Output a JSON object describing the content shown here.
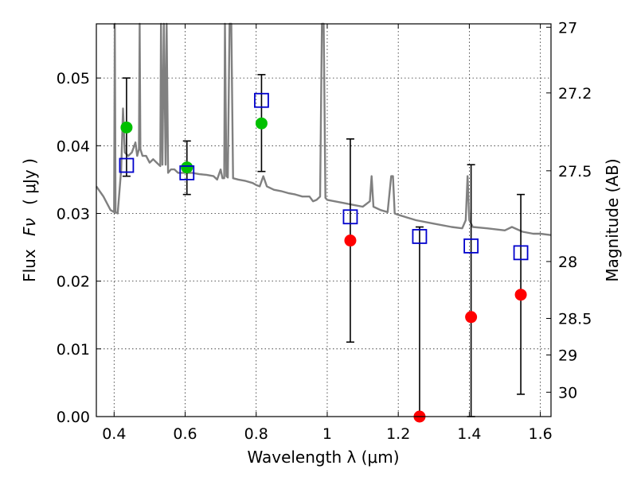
{
  "chart_data": {
    "type": "scatter",
    "xlabel": "Wavelength  λ (μm)",
    "ylabel_text": "Flux",
    "ylabel_symbol": "Fν",
    "ylabel_unit": "( μJy )",
    "ylabel_right": "Magnitude (AB)",
    "xlim": [
      0.35,
      1.63
    ],
    "ylim": [
      0.0,
      0.058
    ],
    "xticks": [
      0.4,
      0.6,
      0.8,
      1.0,
      1.2,
      1.4,
      1.6
    ],
    "xtick_labels": [
      "0.4",
      "0.6",
      "0.8",
      "1",
      "1.2",
      "1.4",
      "1.6"
    ],
    "yticks": [
      0.0,
      0.01,
      0.02,
      0.03,
      0.04,
      0.05
    ],
    "ytick_labels": [
      "0.00",
      "0.01",
      "0.02",
      "0.03",
      "0.04",
      "0.05"
    ],
    "right_ticks": [
      {
        "label": "27",
        "flux": 0.0575
      },
      {
        "label": "27.2",
        "flux": 0.0478
      },
      {
        "label": "27.5",
        "flux": 0.0363
      },
      {
        "label": "28",
        "flux": 0.0229
      },
      {
        "label": "28.5",
        "flux": 0.0145
      },
      {
        "label": "29",
        "flux": 0.0091
      },
      {
        "label": "30",
        "flux": 0.0036
      }
    ],
    "grid": true,
    "model_sed": {
      "name": "model spectrum",
      "color": "#808080",
      "points": [
        [
          0.35,
          0.034
        ],
        [
          0.37,
          0.0325
        ],
        [
          0.39,
          0.0305
        ],
        [
          0.4,
          0.0302
        ],
        [
          0.402,
          0.06
        ],
        [
          0.404,
          0.0302
        ],
        [
          0.41,
          0.03
        ],
        [
          0.42,
          0.0365
        ],
        [
          0.425,
          0.0455
        ],
        [
          0.43,
          0.039
        ],
        [
          0.44,
          0.0385
        ],
        [
          0.45,
          0.039
        ],
        [
          0.46,
          0.0405
        ],
        [
          0.465,
          0.0385
        ],
        [
          0.47,
          0.0395
        ],
        [
          0.472,
          0.06
        ],
        [
          0.474,
          0.0395
        ],
        [
          0.48,
          0.0385
        ],
        [
          0.49,
          0.0385
        ],
        [
          0.5,
          0.0375
        ],
        [
          0.51,
          0.038
        ],
        [
          0.52,
          0.0375
        ],
        [
          0.53,
          0.037
        ],
        [
          0.532,
          0.06
        ],
        [
          0.536,
          0.0372
        ],
        [
          0.54,
          0.06
        ],
        [
          0.545,
          0.0372
        ],
        [
          0.548,
          0.06
        ],
        [
          0.552,
          0.036
        ],
        [
          0.56,
          0.0365
        ],
        [
          0.57,
          0.0365
        ],
        [
          0.58,
          0.036
        ],
        [
          0.6,
          0.036
        ],
        [
          0.62,
          0.036
        ],
        [
          0.64,
          0.0358
        ],
        [
          0.66,
          0.0357
        ],
        [
          0.68,
          0.0355
        ],
        [
          0.69,
          0.035
        ],
        [
          0.7,
          0.0365
        ],
        [
          0.705,
          0.0352
        ],
        [
          0.71,
          0.0352
        ],
        [
          0.712,
          0.06
        ],
        [
          0.716,
          0.0355
        ],
        [
          0.72,
          0.0353
        ],
        [
          0.725,
          0.06
        ],
        [
          0.73,
          0.06
        ],
        [
          0.735,
          0.0352
        ],
        [
          0.75,
          0.035
        ],
        [
          0.77,
          0.0348
        ],
        [
          0.79,
          0.0345
        ],
        [
          0.8,
          0.0342
        ],
        [
          0.81,
          0.034
        ],
        [
          0.82,
          0.0355
        ],
        [
          0.83,
          0.034
        ],
        [
          0.85,
          0.0335
        ],
        [
          0.87,
          0.0333
        ],
        [
          0.89,
          0.033
        ],
        [
          0.91,
          0.0328
        ],
        [
          0.93,
          0.0325
        ],
        [
          0.95,
          0.0325
        ],
        [
          0.96,
          0.0318
        ],
        [
          0.97,
          0.032
        ],
        [
          0.98,
          0.0325
        ],
        [
          0.985,
          0.06
        ],
        [
          0.99,
          0.06
        ],
        [
          0.995,
          0.0323
        ],
        [
          1.0,
          0.032
        ],
        [
          1.05,
          0.0315
        ],
        [
          1.08,
          0.0312
        ],
        [
          1.1,
          0.031
        ],
        [
          1.12,
          0.0318
        ],
        [
          1.125,
          0.0355
        ],
        [
          1.13,
          0.031
        ],
        [
          1.15,
          0.0305
        ],
        [
          1.17,
          0.0302
        ],
        [
          1.18,
          0.0355
        ],
        [
          1.185,
          0.0355
        ],
        [
          1.19,
          0.03
        ],
        [
          1.2,
          0.0298
        ],
        [
          1.25,
          0.029
        ],
        [
          1.3,
          0.0285
        ],
        [
          1.35,
          0.028
        ],
        [
          1.38,
          0.0278
        ],
        [
          1.39,
          0.029
        ],
        [
          1.395,
          0.0355
        ],
        [
          1.4,
          0.029
        ],
        [
          1.41,
          0.028
        ],
        [
          1.45,
          0.0278
        ],
        [
          1.5,
          0.0275
        ],
        [
          1.52,
          0.028
        ],
        [
          1.55,
          0.0273
        ],
        [
          1.58,
          0.027
        ],
        [
          1.6,
          0.027
        ],
        [
          1.63,
          0.0268
        ]
      ]
    },
    "observed": [
      {
        "x": 0.435,
        "y": 0.0427,
        "yerr_low": 0.0355,
        "yerr_high": 0.05,
        "color": "#00c000"
      },
      {
        "x": 0.605,
        "y": 0.0368,
        "yerr_low": 0.0328,
        "yerr_high": 0.0407,
        "color": "#00c000"
      },
      {
        "x": 0.815,
        "y": 0.0433,
        "yerr_low": 0.0362,
        "yerr_high": 0.0505,
        "color": "#00c000"
      },
      {
        "x": 1.065,
        "y": 0.026,
        "yerr_low": 0.011,
        "yerr_high": 0.041,
        "color": "#ff0000"
      },
      {
        "x": 1.26,
        "y": 0.0,
        "yerr_low": 0.0,
        "yerr_high": 0.028,
        "color": "#ff0000"
      },
      {
        "x": 1.405,
        "y": 0.0147,
        "yerr_low": 0.0,
        "yerr_high": 0.0372,
        "color": "#ff0000"
      },
      {
        "x": 1.545,
        "y": 0.018,
        "yerr_low": 0.0033,
        "yerr_high": 0.0328,
        "color": "#ff0000"
      }
    ],
    "model_phot": {
      "color": "#0000cc",
      "points": [
        [
          0.435,
          0.0371
        ],
        [
          0.605,
          0.036
        ],
        [
          0.815,
          0.0467
        ],
        [
          1.065,
          0.0295
        ],
        [
          1.26,
          0.0266
        ],
        [
          1.405,
          0.0252
        ],
        [
          1.545,
          0.0242
        ]
      ]
    }
  }
}
